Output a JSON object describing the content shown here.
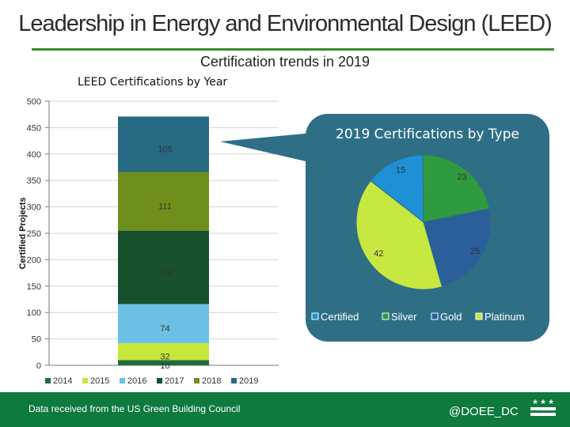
{
  "page": {
    "title": "Leadership in Energy and Environmental Design (LEED)",
    "subtitle": "Certification trends in 2019",
    "footer_source": "Data received from the US Green Building Council",
    "footer_handle": "@DOEE_DC"
  },
  "colors": {
    "accent_green": "#3a8a2c",
    "footer_green": "#0e7a3e",
    "callout_bg": "#2e6f86",
    "seg_2014": "#1f6e3a",
    "seg_2015": "#c7e83a",
    "seg_2016": "#6cc0e6",
    "seg_2017": "#17502c",
    "seg_2018": "#6f8f1c",
    "seg_2019": "#256a82",
    "pie_certified": "#1f8fd6",
    "pie_silver": "#2f9b3f",
    "pie_gold": "#2a5f99",
    "pie_platinum": "#c6e840"
  },
  "chart_data": [
    {
      "type": "bar",
      "stacked": true,
      "title": "LEED Certifications by Year",
      "xlabel": "",
      "ylabel": "Certified Projects",
      "ylim": [
        0,
        500
      ],
      "yticks": [
        0,
        50,
        100,
        150,
        200,
        250,
        300,
        350,
        400,
        450,
        500
      ],
      "series": [
        {
          "name": "2014",
          "value": 10,
          "color_key": "seg_2014"
        },
        {
          "name": "2015",
          "value": 32,
          "color_key": "seg_2015"
        },
        {
          "name": "2016",
          "value": 74,
          "color_key": "seg_2016"
        },
        {
          "name": "2017",
          "value": 139,
          "color_key": "seg_2017"
        },
        {
          "name": "2018",
          "value": 111,
          "color_key": "seg_2018"
        },
        {
          "name": "2019",
          "value": 105,
          "color_key": "seg_2019"
        }
      ],
      "legend": [
        "2014",
        "2015",
        "2016",
        "2017",
        "2018",
        "2019"
      ],
      "legend_position": "bottom",
      "grid": true
    },
    {
      "type": "pie",
      "title": "2019 Certifications by Type",
      "slices": [
        {
          "label": "Certified",
          "value": 15,
          "color_key": "pie_certified"
        },
        {
          "label": "Silver",
          "value": 23,
          "color_key": "pie_silver"
        },
        {
          "label": "Gold",
          "value": 25,
          "color_key": "pie_gold"
        },
        {
          "label": "Platinum",
          "value": 42,
          "color_key": "pie_platinum"
        }
      ],
      "legend": [
        "Certified",
        "Silver",
        "Gold",
        "Platinum"
      ],
      "legend_position": "bottom"
    }
  ]
}
